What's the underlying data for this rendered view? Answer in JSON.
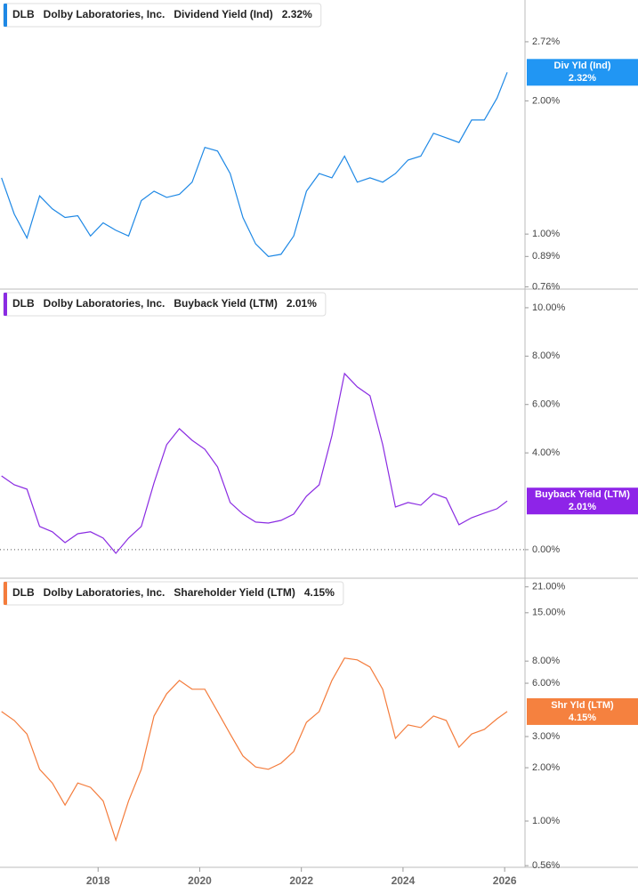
{
  "chart_data": [
    {
      "type": "line",
      "ticker": "DLB",
      "company": "Dolby Laboratories, Inc.",
      "log_scale": true,
      "zero_line": false,
      "x": [
        2016.1,
        2016.35,
        2016.6,
        2016.85,
        2017.1,
        2017.35,
        2017.6,
        2017.85,
        2018.1,
        2018.35,
        2018.6,
        2018.85,
        2019.1,
        2019.35,
        2019.6,
        2019.85,
        2020.1,
        2020.35,
        2020.6,
        2020.85,
        2021.1,
        2021.35,
        2021.6,
        2021.85,
        2022.1,
        2022.35,
        2022.6,
        2022.85,
        2023.1,
        2023.35,
        2023.6,
        2023.85,
        2024.1,
        2024.35,
        2024.6,
        2024.85,
        2025.1,
        2025.35,
        2025.6,
        2025.85,
        2026.05
      ],
      "xlim": [
        2016.07,
        2026.4
      ],
      "ylim": [
        0.751,
        3.38
      ],
      "yticks": [
        {
          "value": 0.76,
          "label": "0.76%"
        },
        {
          "value": 0.89,
          "label": "0.89%"
        },
        {
          "value": 1,
          "label": "1.00%"
        },
        {
          "value": 2,
          "label": "2.00%"
        },
        {
          "value": 2.72,
          "label": "2.72%"
        }
      ],
      "series": [
        {
          "name": "Dividend Yield (Ind)",
          "label": "Div Yld (Ind)",
          "color": "#1e88e5",
          "badge_color": "#2196f3",
          "values": [
            1.34,
            1.11,
            0.98,
            1.22,
            1.14,
            1.09,
            1.1,
            0.99,
            1.06,
            1.02,
            0.99,
            1.19,
            1.25,
            1.21,
            1.23,
            1.31,
            1.57,
            1.54,
            1.37,
            1.09,
            0.95,
            0.89,
            0.9,
            0.99,
            1.25,
            1.37,
            1.34,
            1.5,
            1.31,
            1.34,
            1.31,
            1.37,
            1.47,
            1.5,
            1.69,
            1.65,
            1.61,
            1.81,
            1.81,
            2.03,
            2.32
          ],
          "latest": {
            "value": 2.32,
            "label": "2.32%"
          }
        }
      ]
    },
    {
      "type": "line",
      "ticker": "DLB",
      "company": "Dolby Laboratories, Inc.",
      "log_scale": false,
      "zero_line": true,
      "x": [
        2016.1,
        2016.35,
        2016.6,
        2016.85,
        2017.1,
        2017.35,
        2017.6,
        2017.85,
        2018.1,
        2018.35,
        2018.6,
        2018.85,
        2019.1,
        2019.35,
        2019.6,
        2019.85,
        2020.1,
        2020.35,
        2020.6,
        2020.85,
        2021.1,
        2021.35,
        2021.6,
        2021.85,
        2022.1,
        2022.35,
        2022.6,
        2022.85,
        2023.1,
        2023.35,
        2023.6,
        2023.85,
        2024.1,
        2024.35,
        2024.6,
        2024.85,
        2025.1,
        2025.35,
        2025.6,
        2025.85,
        2026.05
      ],
      "xlim": [
        2016.07,
        2026.4
      ],
      "ylim": [
        -1.18,
        10.77
      ],
      "yticks": [
        {
          "value": 0,
          "label": "0.00%"
        },
        {
          "value": 4,
          "label": "4.00%"
        },
        {
          "value": 6,
          "label": "6.00%"
        },
        {
          "value": 8,
          "label": "8.00%"
        },
        {
          "value": 10,
          "label": "10.00%"
        }
      ],
      "series": [
        {
          "name": "Buyback Yield (LTM)",
          "label": "Buyback Yield (LTM)",
          "color": "#8a2be2",
          "badge_color": "#8e24e8",
          "values": [
            3.05,
            2.68,
            2.5,
            0.96,
            0.74,
            0.29,
            0.66,
            0.74,
            0.48,
            -0.15,
            0.48,
            0.96,
            2.76,
            4.34,
            5.0,
            4.52,
            4.15,
            3.42,
            1.95,
            1.47,
            1.14,
            1.1,
            1.21,
            1.47,
            2.21,
            2.68,
            4.71,
            7.28,
            6.73,
            6.36,
            4.34,
            1.76,
            1.95,
            1.84,
            2.32,
            2.13,
            1.03,
            1.32,
            1.51,
            1.69,
            2.01
          ],
          "latest": {
            "value": 2.01,
            "label": "2.01%"
          }
        }
      ]
    },
    {
      "type": "line",
      "ticker": "DLB",
      "company": "Dolby Laboratories, Inc.",
      "log_scale": true,
      "zero_line": false,
      "x": [
        2016.1,
        2016.35,
        2016.6,
        2016.85,
        2017.1,
        2017.35,
        2017.6,
        2017.85,
        2018.1,
        2018.35,
        2018.6,
        2018.85,
        2019.1,
        2019.35,
        2019.6,
        2019.85,
        2020.1,
        2020.35,
        2020.6,
        2020.85,
        2021.1,
        2021.35,
        2021.6,
        2021.85,
        2022.1,
        2022.35,
        2022.6,
        2022.85,
        2023.1,
        2023.35,
        2023.6,
        2023.85,
        2024.1,
        2024.35,
        2024.6,
        2024.85,
        2025.1,
        2025.35,
        2025.6,
        2025.85,
        2026.05
      ],
      "xlim": [
        2016.07,
        2026.4
      ],
      "xticks": [
        2018,
        2020,
        2022,
        2024,
        2026
      ],
      "ylim": [
        0.548,
        23.5
      ],
      "yticks": [
        {
          "value": 0.56,
          "label": "0.56%"
        },
        {
          "value": 1,
          "label": "1.00%"
        },
        {
          "value": 2,
          "label": "2.00%"
        },
        {
          "value": 3,
          "label": "3.00%"
        },
        {
          "value": 6,
          "label": "6.00%"
        },
        {
          "value": 8,
          "label": "8.00%"
        },
        {
          "value": 15,
          "label": "15.00%"
        },
        {
          "value": 21,
          "label": "21.00%"
        }
      ],
      "series": [
        {
          "name": "Shareholder Yield (LTM)",
          "label": "Shr Yld (LTM)",
          "color": "#f47c3c",
          "badge_color": "#f5813f",
          "values": [
            4.15,
            3.7,
            3.1,
            1.96,
            1.64,
            1.23,
            1.64,
            1.55,
            1.3,
            0.78,
            1.3,
            1.96,
            3.92,
            5.23,
            6.22,
            5.55,
            5.55,
            4.15,
            3.1,
            2.33,
            2.02,
            1.96,
            2.12,
            2.47,
            3.61,
            4.15,
            6.22,
            8.32,
            8.13,
            7.41,
            5.55,
            2.93,
            3.49,
            3.37,
            3.92,
            3.7,
            2.61,
            3.1,
            3.29,
            3.78,
            4.15
          ],
          "latest": {
            "value": 4.15,
            "label": "4.15%"
          }
        }
      ]
    }
  ]
}
